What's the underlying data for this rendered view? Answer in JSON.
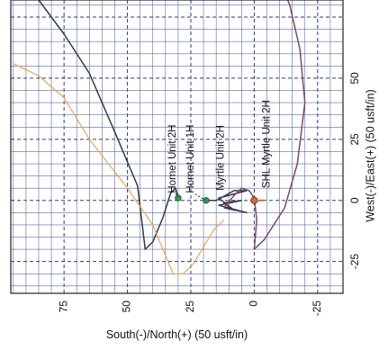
{
  "chart_data": {
    "type": "line",
    "title": "",
    "xlabel": "South(-)/North(+) (50 usft/in)",
    "ylabel": "West(-)/East(+) (50 usft/in)",
    "xlim": [
      96,
      -35
    ],
    "ylim": [
      -38,
      82
    ],
    "x_ticks": [
      75,
      50,
      25,
      0,
      -25
    ],
    "y_ticks": [
      50,
      25,
      0,
      -25
    ],
    "x_tick_labels": [
      "75",
      "50",
      "25",
      "0",
      "-25"
    ],
    "y_tick_labels": [
      "50",
      "25",
      "0",
      "-25"
    ],
    "grid": true,
    "wells": [
      {
        "name": "Hornet Unit 2H",
        "color": "#333a44",
        "x": [
          85,
          75,
          65,
          55,
          46,
          43,
          40,
          36,
          33,
          31,
          30.5,
          30
        ],
        "y": [
          82,
          68,
          52,
          28,
          6,
          -20,
          -17,
          -7,
          3,
          5,
          3,
          1
        ]
      },
      {
        "name": "Hornet Unit 1H",
        "color": "#e8a040",
        "x": [
          95,
          85,
          75,
          65,
          50,
          40,
          32,
          28,
          24,
          20,
          16,
          12
        ],
        "y": [
          56,
          51,
          42,
          25,
          5,
          -10,
          -30,
          -30,
          -26,
          -19,
          -12,
          -8
        ]
      },
      {
        "name": "Myrtle Unit 2H",
        "color": "#3a3a4a",
        "x": [
          19,
          15,
          8,
          3,
          14,
          8,
          12,
          5,
          14,
          3,
          12
        ],
        "y": [
          0,
          0,
          4,
          4,
          1,
          -4,
          -1,
          0,
          -2,
          -5,
          -3
        ]
      },
      {
        "name": "SHL Myrtle Unit 2H",
        "color": "#7a4a6a",
        "x": [
          12,
          8,
          5,
          2,
          0,
          -1,
          0,
          -4,
          -12,
          -17,
          -20,
          -18,
          -14,
          -8
        ],
        "y": [
          -3,
          2,
          5,
          4,
          1,
          -8,
          -20,
          -16,
          -3,
          15,
          40,
          62,
          80,
          95
        ]
      }
    ]
  }
}
